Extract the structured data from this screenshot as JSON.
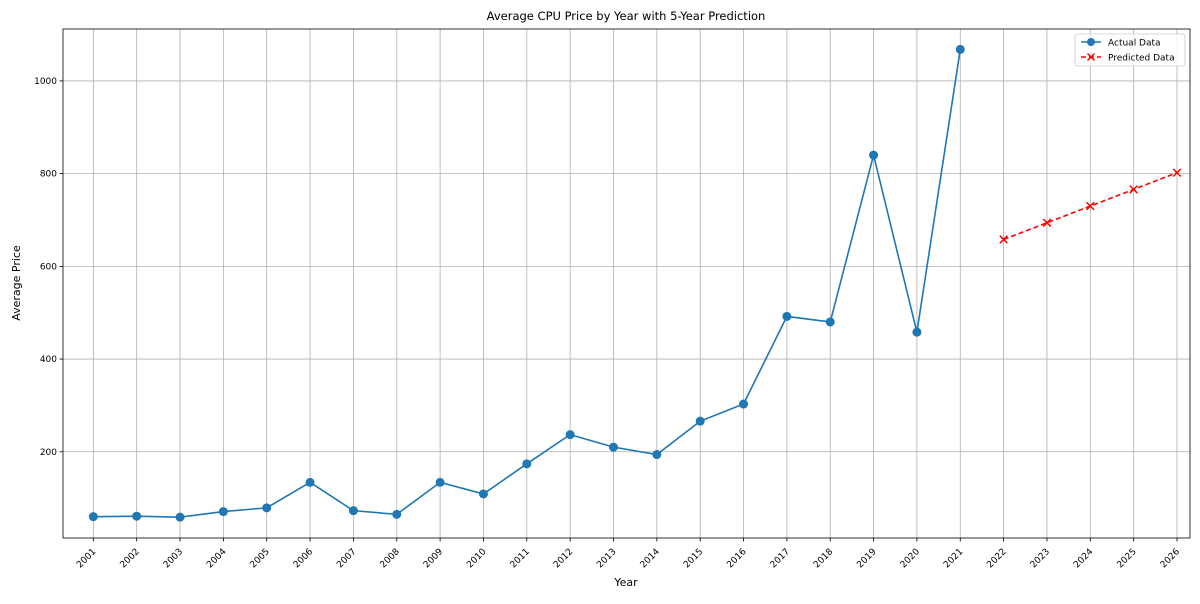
{
  "chart_data": {
    "type": "line",
    "title": "Average CPU Price by Year with 5-Year Prediction",
    "xlabel": "Year",
    "ylabel": "Average Price",
    "x": [
      2001,
      2002,
      2003,
      2004,
      2005,
      2006,
      2007,
      2008,
      2009,
      2010,
      2011,
      2012,
      2013,
      2014,
      2015,
      2016,
      2017,
      2018,
      2019,
      2020,
      2021,
      2022,
      2023,
      2024,
      2025,
      2026
    ],
    "x_tick_labels": [
      "2001",
      "2002",
      "2003",
      "2004",
      "2005",
      "2006",
      "2007",
      "2008",
      "2009",
      "2010",
      "2011",
      "2012",
      "2013",
      "2014",
      "2015",
      "2016",
      "2017",
      "2018",
      "2019",
      "2020",
      "2021",
      "2022",
      "2023",
      "2024",
      "2025",
      "2026"
    ],
    "y_ticks": [
      200,
      400,
      600,
      800,
      1000
    ],
    "y_tick_labels": [
      "200",
      "400",
      "600",
      "800",
      "1000"
    ],
    "ylim": [
      14,
      1112
    ],
    "xlim": [
      2000.3,
      2026.3
    ],
    "grid": true,
    "legend_position": "top-right",
    "series": [
      {
        "name": "Actual Data",
        "color": "#1f77b4",
        "line_style": "solid",
        "marker": "circle",
        "x": [
          2001,
          2002,
          2003,
          2004,
          2005,
          2006,
          2007,
          2008,
          2009,
          2010,
          2011,
          2012,
          2013,
          2014,
          2015,
          2016,
          2017,
          2018,
          2019,
          2020,
          2021
        ],
        "values": [
          60,
          61,
          59,
          71,
          79,
          134,
          73,
          65,
          134,
          109,
          174,
          237,
          210,
          194,
          266,
          303,
          492,
          480,
          840,
          458,
          1068
        ]
      },
      {
        "name": "Predicted Data",
        "color": "#ff0000",
        "line_style": "dashed",
        "marker": "x",
        "x": [
          2022,
          2023,
          2024,
          2025,
          2026
        ],
        "values": [
          658,
          694,
          730,
          766,
          802
        ]
      }
    ]
  }
}
